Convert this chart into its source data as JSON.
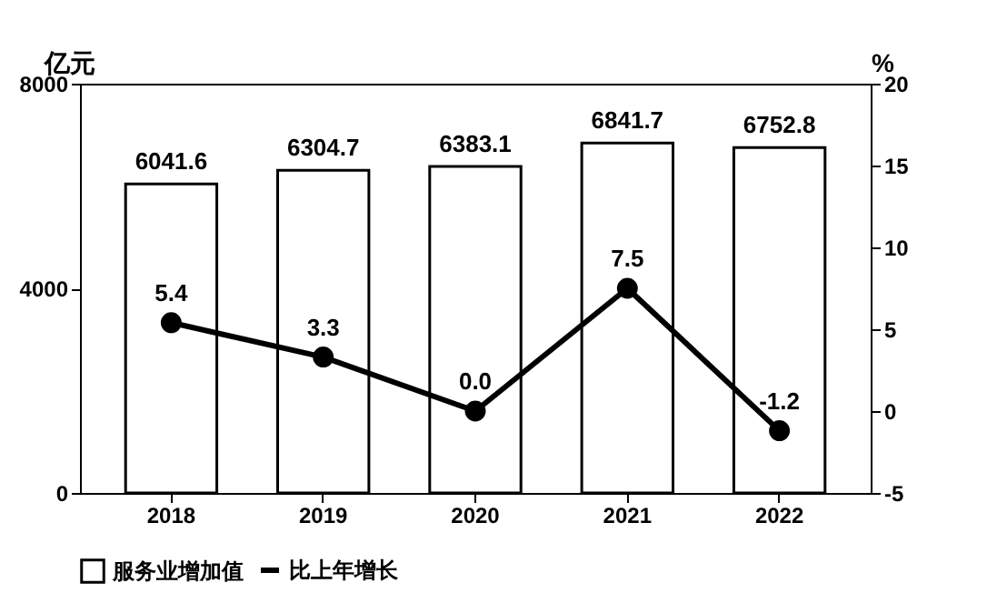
{
  "chart_data": {
    "type": "bar",
    "categories": [
      "2018",
      "2019",
      "2020",
      "2021",
      "2022"
    ],
    "ylabel": "亿元",
    "y2label": "%",
    "series": [
      {
        "name": "服务业增加值",
        "color": "#ffffff",
        "values": [
          6041.6,
          6304.7,
          6383.1,
          6841.7,
          6752.8
        ]
      },
      {
        "name": "比上年增长",
        "type": "line",
        "axis": "y2",
        "color": "#000000",
        "values": [
          5.4,
          3.3,
          0.0,
          7.5,
          -1.2
        ],
        "value_labels": [
          "5.4",
          "3.3",
          "0.0",
          "7.5",
          "-1.2"
        ]
      }
    ],
    "ylim": [
      0,
      8000
    ],
    "yticks": [
      0,
      4000,
      8000
    ],
    "y2lim": [
      -5,
      20
    ],
    "y2ticks": [
      -5,
      0,
      5,
      10,
      15,
      20
    ],
    "data_labels": true,
    "legend": "bottom",
    "grid": false,
    "marker": "circle",
    "line_style": "solid"
  }
}
